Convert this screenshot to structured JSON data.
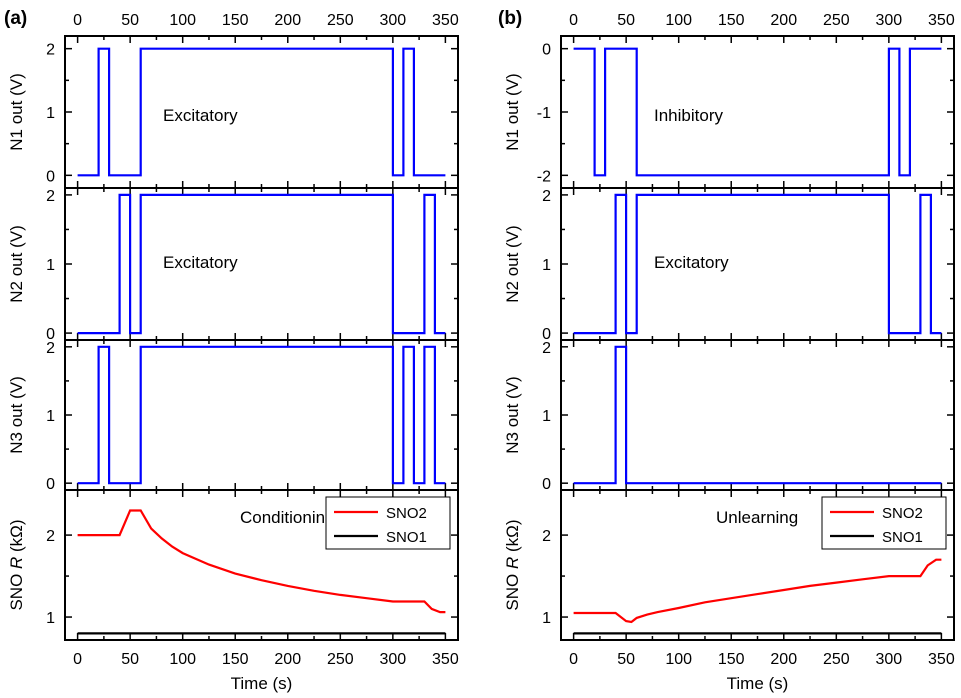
{
  "chart_data": [
    {
      "panel": "(a)",
      "type": "line",
      "x_top_ticks": [
        "0",
        "50",
        "100",
        "150",
        "200",
        "250",
        "300",
        "350"
      ],
      "x_bottom_ticks": [
        "0",
        "50",
        "100",
        "150",
        "200",
        "250",
        "300",
        "350"
      ],
      "xlabel": "Time (s)",
      "xlim": [
        -12,
        362
      ],
      "subplots": [
        {
          "ylabel": "N1 out (V)",
          "ylim": [
            -0.2,
            2.2
          ],
          "yticks": [
            "0",
            "1",
            "2"
          ],
          "annotation": "Excitatory",
          "series": [
            {
              "color": "#0000ff",
              "x": [
                0,
                20,
                20,
                30,
                30,
                60,
                60,
                300,
                300,
                310,
                310,
                320,
                320,
                350
              ],
              "y": [
                0,
                0,
                2,
                2,
                0,
                0,
                2,
                2,
                0,
                0,
                2,
                2,
                0,
                0
              ]
            }
          ]
        },
        {
          "ylabel": "N2 out (V)",
          "ylim": [
            -0.1,
            2.1
          ],
          "yticks": [
            "0",
            "1",
            "2"
          ],
          "annotation": "Excitatory",
          "series": [
            {
              "color": "#0000ff",
              "x": [
                0,
                40,
                40,
                50,
                50,
                60,
                60,
                300,
                300,
                330,
                330,
                340,
                340,
                350
              ],
              "y": [
                0,
                0,
                2,
                2,
                0,
                0,
                2,
                2,
                0,
                0,
                2,
                2,
                0,
                0
              ]
            }
          ]
        },
        {
          "ylabel": "N3 out (V)",
          "ylim": [
            -0.1,
            2.1
          ],
          "yticks": [
            "0",
            "1",
            "2"
          ],
          "annotation": "",
          "series": [
            {
              "color": "#0000ff",
              "x": [
                0,
                20,
                20,
                30,
                30,
                60,
                60,
                300,
                300,
                310,
                310,
                320,
                320,
                330,
                330,
                340,
                340,
                350
              ],
              "y": [
                0,
                0,
                2,
                2,
                0,
                0,
                2,
                2,
                0,
                0,
                2,
                2,
                0,
                0,
                2,
                2,
                0,
                0
              ]
            }
          ]
        },
        {
          "ylabel_pre": "SNO ",
          "ylabel_italic": "R",
          "ylabel_post": " (kΩ)",
          "ylim": [
            0.72,
            2.55
          ],
          "yticks": [
            "1",
            "2"
          ],
          "annotation": "Conditioning",
          "legend": "top-right",
          "series": [
            {
              "name": "SNO2",
              "color": "#ff0000",
              "x": [
                0,
                40,
                50,
                60,
                70,
                80,
                90,
                100,
                125,
                150,
                175,
                200,
                225,
                250,
                275,
                300,
                330,
                337,
                345,
                350
              ],
              "y": [
                2.0,
                2.0,
                2.3,
                2.3,
                2.08,
                1.96,
                1.86,
                1.78,
                1.64,
                1.53,
                1.45,
                1.38,
                1.32,
                1.27,
                1.23,
                1.19,
                1.19,
                1.1,
                1.06,
                1.06
              ]
            },
            {
              "name": "SNO1",
              "color": "#000000",
              "x": [
                0,
                350
              ],
              "y": [
                0.8,
                0.8
              ]
            }
          ]
        }
      ]
    },
    {
      "panel": "(b)",
      "type": "line",
      "x_top_ticks": [
        "0",
        "50",
        "100",
        "150",
        "200",
        "250",
        "300",
        "350"
      ],
      "x_bottom_ticks": [
        "0",
        "50",
        "100",
        "150",
        "200",
        "250",
        "300",
        "350"
      ],
      "xlabel": "Time (s)",
      "xlim": [
        -12,
        362
      ],
      "subplots": [
        {
          "ylabel": "N1 out (V)",
          "ylim": [
            -2.2,
            0.2
          ],
          "yticks": [
            "0",
            "-1",
            "-2"
          ],
          "annotation": "Inhibitory",
          "series": [
            {
              "color": "#0000ff",
              "x": [
                0,
                20,
                20,
                30,
                30,
                60,
                60,
                300,
                300,
                310,
                310,
                320,
                320,
                350
              ],
              "y": [
                0,
                0,
                -2,
                -2,
                0,
                0,
                -2,
                -2,
                0,
                0,
                -2,
                -2,
                0,
                0
              ]
            }
          ]
        },
        {
          "ylabel": "N2 out (V)",
          "ylim": [
            -0.1,
            2.1
          ],
          "yticks": [
            "0",
            "1",
            "2"
          ],
          "annotation": "Excitatory",
          "series": [
            {
              "color": "#0000ff",
              "x": [
                0,
                40,
                40,
                50,
                50,
                60,
                60,
                300,
                300,
                330,
                330,
                340,
                340,
                350
              ],
              "y": [
                0,
                0,
                2,
                2,
                0,
                0,
                2,
                2,
                0,
                0,
                2,
                2,
                0,
                0
              ]
            }
          ]
        },
        {
          "ylabel": "N3 out (V)",
          "ylim": [
            -0.1,
            2.1
          ],
          "yticks": [
            "0",
            "1",
            "2"
          ],
          "annotation": "",
          "series": [
            {
              "color": "#0000ff",
              "x": [
                0,
                40,
                40,
                50,
                50,
                350
              ],
              "y": [
                0,
                0,
                2,
                2,
                0,
                0
              ]
            }
          ]
        },
        {
          "ylabel_pre": "SNO ",
          "ylabel_italic": "R",
          "ylabel_post": " (kΩ)",
          "ylim": [
            0.72,
            2.55
          ],
          "yticks": [
            "1",
            "2"
          ],
          "annotation": "Unlearning",
          "legend": "top-right",
          "series": [
            {
              "name": "SNO2",
              "color": "#ff0000",
              "x": [
                0,
                40,
                50,
                55,
                60,
                70,
                80,
                100,
                125,
                150,
                175,
                200,
                225,
                250,
                275,
                300,
                330,
                337,
                345,
                350
              ],
              "y": [
                1.05,
                1.05,
                0.95,
                0.94,
                0.99,
                1.03,
                1.06,
                1.11,
                1.18,
                1.23,
                1.28,
                1.33,
                1.38,
                1.42,
                1.46,
                1.5,
                1.5,
                1.63,
                1.7,
                1.7
              ]
            },
            {
              "name": "SNO1",
              "color": "#000000",
              "x": [
                0,
                350
              ],
              "y": [
                0.8,
                0.8
              ]
            }
          ]
        }
      ]
    }
  ]
}
